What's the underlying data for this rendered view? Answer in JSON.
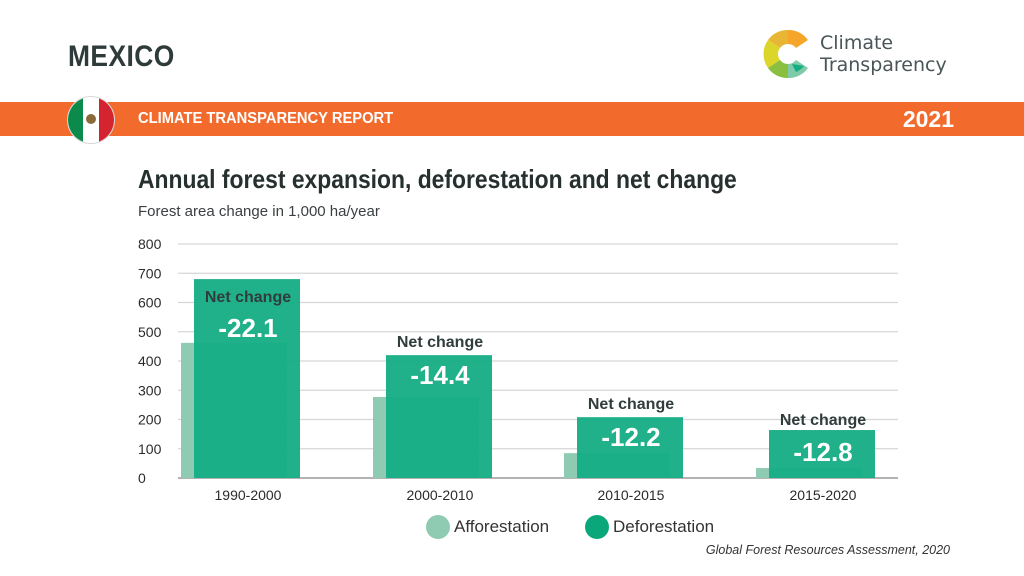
{
  "header": {
    "country": "MEXICO",
    "logo_text_line1": "Climate",
    "logo_text_line2": "Transparency",
    "report_title": "CLIMATE TRANSPARENCY REPORT",
    "year": "2021",
    "flag_icon": "mexico-flag-icon",
    "colors": {
      "band": "#f26b2d",
      "afforestation": "#8ecbb2",
      "deforestation": "#14ad84"
    }
  },
  "chart_data": {
    "type": "bar",
    "title": "Annual forest expansion, deforestation and net change",
    "subtitle": "Forest area change in 1,000 ha/year",
    "xlabel": "",
    "ylabel": "Forest area change in 1,000 ha/year",
    "ylim": [
      0,
      800
    ],
    "yticks": [
      0,
      100,
      200,
      300,
      400,
      500,
      600,
      700,
      800
    ],
    "grid": true,
    "legend_position": "bottom",
    "categories": [
      "1990-2000",
      "2000-2010",
      "2010-2015",
      "2015-2020"
    ],
    "series": [
      {
        "name": "Afforestation",
        "values": [
          462,
          277,
          85,
          34
        ]
      },
      {
        "name": "Deforestation",
        "values": [
          680,
          420,
          208,
          164
        ]
      }
    ],
    "annotations": [
      {
        "label": "Net change",
        "value": "-22.1"
      },
      {
        "label": "Net change",
        "value": "-14.4"
      },
      {
        "label": "Net change",
        "value": "-12.2"
      },
      {
        "label": "Net change",
        "value": "-12.8"
      }
    ]
  },
  "legend": [
    {
      "label": "Afforestation"
    },
    {
      "label": "Deforestation"
    }
  ],
  "source": "Global Forest Resources Assessment, 2020"
}
